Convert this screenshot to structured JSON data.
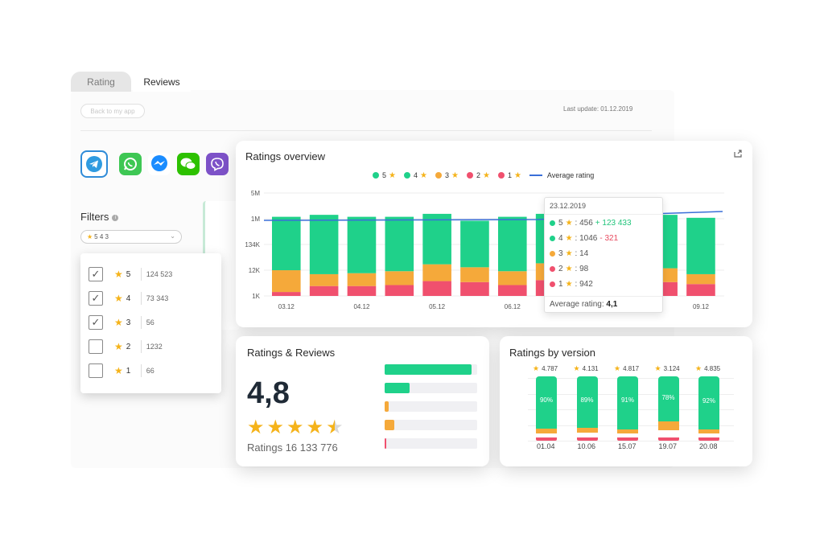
{
  "tabs": {
    "rating": "Rating",
    "reviews": "Reviews"
  },
  "back_button": "Back to my app",
  "last_update": "Last update: 01.12.2019",
  "apps": [
    {
      "name": "telegram-icon",
      "color": "#2f9be0",
      "selected": true
    },
    {
      "name": "whatsapp-icon",
      "color": "#3ec754"
    },
    {
      "name": "messenger-icon",
      "color": "#1a8cff"
    },
    {
      "name": "wechat-icon",
      "color": "#2dc100"
    },
    {
      "name": "viber-icon",
      "color": "#7d52c8"
    }
  ],
  "filters": {
    "label": "Filters",
    "selected_display": "5 4 3",
    "options": [
      {
        "stars": "5",
        "count": "124 523",
        "checked": true
      },
      {
        "stars": "4",
        "count": "73 343",
        "checked": true
      },
      {
        "stars": "3",
        "count": "56",
        "checked": true
      },
      {
        "stars": "2",
        "count": "1232",
        "checked": false
      },
      {
        "stars": "1",
        "count": "66",
        "checked": false
      }
    ]
  },
  "colors": {
    "s5": "#1fd18a",
    "s4": "#1fd18a",
    "s3": "#f5a93a",
    "s2": "#f0506e",
    "s1": "#f0506e",
    "avg": "#3a6fd8",
    "star": "#f5b31a"
  },
  "overview": {
    "title": "Ratings overview",
    "legend": {
      "s5": "5",
      "s4": "4",
      "s3": "3",
      "s2": "2",
      "s1": "1",
      "avg": "Average rating"
    },
    "tooltip": {
      "date": "23.12.2019",
      "rows": [
        {
          "stars": "5",
          "value": ": 456",
          "delta": "+ 123 433",
          "delta_type": "plus"
        },
        {
          "stars": "4",
          "value": ": 1046",
          "delta": "- 321",
          "delta_type": "minus"
        },
        {
          "stars": "3",
          "value": ": 14",
          "delta": ""
        },
        {
          "stars": "2",
          "value": ": 98",
          "delta": ""
        },
        {
          "stars": "1",
          "value": ": 942",
          "delta": ""
        }
      ],
      "avg_label": "Average rating:",
      "avg_value": "4,1"
    }
  },
  "chart_data": {
    "type": "bar",
    "title": "Ratings overview",
    "y_tick_labels": [
      "5M",
      "1M",
      "134K",
      "12K",
      "1K"
    ],
    "x_tick_labels": [
      "03.12",
      "04.12",
      "05.12",
      "06.12",
      "09.12"
    ],
    "series": [
      {
        "name": "5 / 4 stars",
        "relative_height": [
          0.8,
          0.82,
          0.8,
          0.8,
          0.83,
          0.76,
          0.8,
          0.83,
          0.84,
          0.82,
          0.82,
          0.79
        ]
      },
      {
        "name": "3 stars",
        "relative_height": [
          0.22,
          0.12,
          0.13,
          0.14,
          0.17,
          0.15,
          0.14,
          0.17,
          0.13,
          0.15,
          0.14,
          0.1
        ]
      },
      {
        "name": "2 / 1 stars",
        "relative_height": [
          0.04,
          0.1,
          0.1,
          0.11,
          0.15,
          0.14,
          0.11,
          0.16,
          0.12,
          0.14,
          0.14,
          0.12
        ]
      }
    ],
    "average_line_note": "Average rating",
    "grid": true
  },
  "rr": {
    "title": "Ratings & Reviews",
    "big": "4,8",
    "stars_filled": 4.5,
    "total": "Ratings 16 133 776",
    "bars": [
      {
        "fill": 0.94,
        "color": "#1fd18a"
      },
      {
        "fill": 0.27,
        "color": "#1fd18a"
      },
      {
        "fill": 0.04,
        "color": "#f5a93a"
      },
      {
        "fill": 0.1,
        "color": "#f5a93a"
      },
      {
        "fill": 0.02,
        "color": "#f0506e"
      }
    ]
  },
  "rv": {
    "title": "Ratings by version",
    "versions": [
      {
        "rating": "4.787",
        "pct": "90%",
        "label": "01.04"
      },
      {
        "rating": "4.131",
        "pct": "89%",
        "label": "10.06"
      },
      {
        "rating": "4.817",
        "pct": "91%",
        "label": "15.07"
      },
      {
        "rating": "3.124",
        "pct": "78%",
        "label": "19.07"
      },
      {
        "rating": "4.835",
        "pct": "92%",
        "label": "20.08"
      }
    ]
  }
}
